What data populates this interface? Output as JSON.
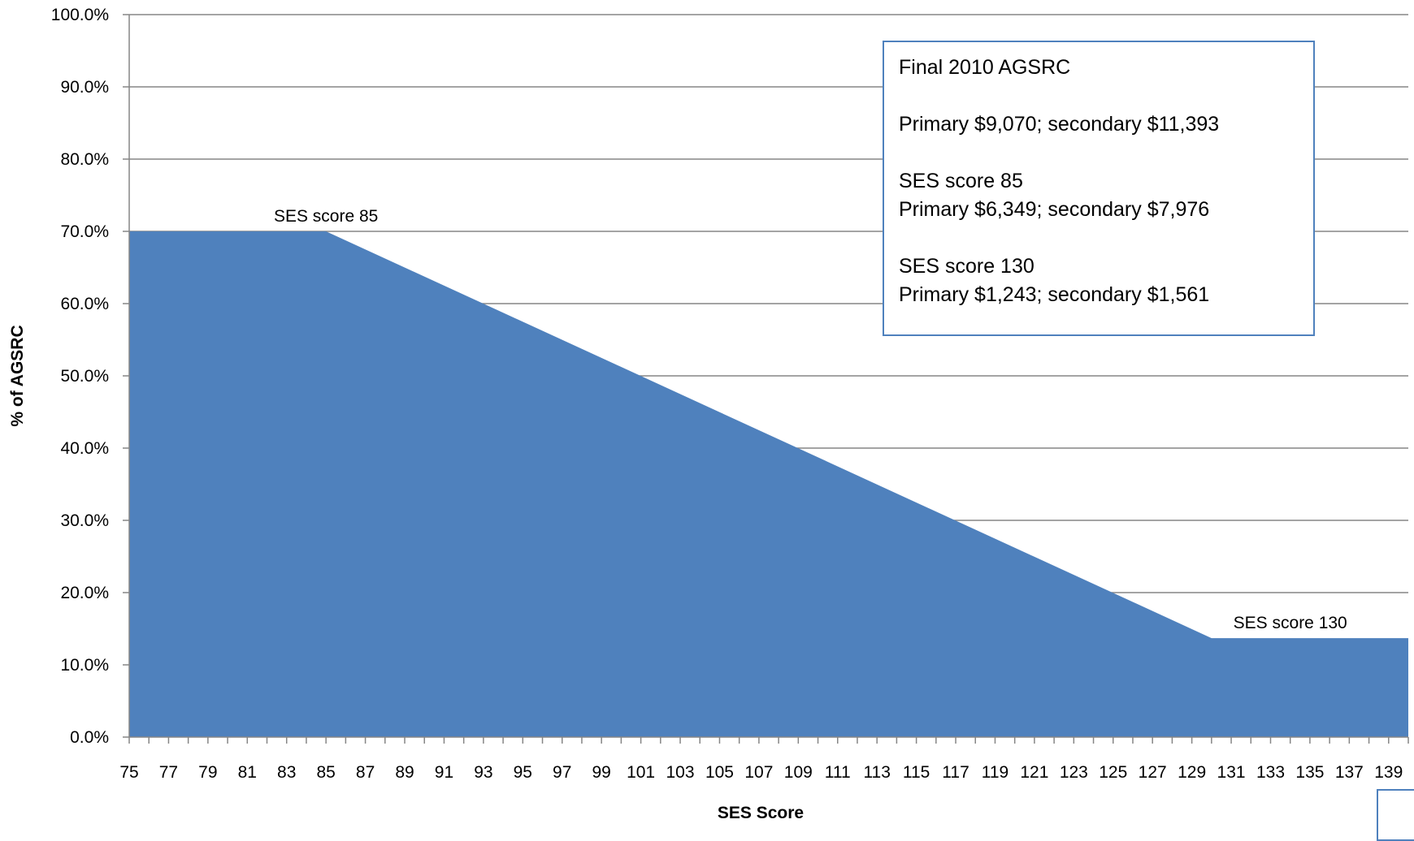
{
  "chart_data": {
    "type": "area",
    "x": [
      75,
      85,
      130,
      140
    ],
    "values": [
      70.0,
      70.0,
      13.7,
      13.7
    ],
    "x_tick_labels": [
      "75",
      "77",
      "79",
      "81",
      "83",
      "85",
      "87",
      "89",
      "91",
      "93",
      "95",
      "97",
      "99",
      "101",
      "103",
      "105",
      "107",
      "109",
      "111",
      "113",
      "115",
      "117",
      "119",
      "121",
      "123",
      "125",
      "127",
      "129",
      "131",
      "133",
      "135",
      "137",
      "139"
    ],
    "y_tick_labels": [
      "0.0%",
      "10.0%",
      "20.0%",
      "30.0%",
      "40.0%",
      "50.0%",
      "60.0%",
      "70.0%",
      "80.0%",
      "90.0%",
      "100.0%"
    ],
    "xlim": [
      75,
      140
    ],
    "ylim": [
      0,
      100
    ],
    "xlabel": "SES Score",
    "ylabel": "% of AGSRC",
    "grid": "horizontal",
    "annotations": [
      {
        "text": "SES score 85",
        "x": 85,
        "y": 70.0
      },
      {
        "text": "SES score 130",
        "x": 134,
        "y": 13.7
      }
    ],
    "colors": {
      "area": "#4f81bd",
      "gridline": "#868686",
      "box_border": "#4f81bd"
    }
  },
  "info_box": {
    "title": "Final 2010 AGSRC",
    "line2": "Primary $9,070; secondary $11,393",
    "line3": "SES score 85",
    "line4": "Primary $6,349; secondary $7,976",
    "line5": "SES score 130",
    "line6": "Primary $1,243; secondary $1,561"
  }
}
